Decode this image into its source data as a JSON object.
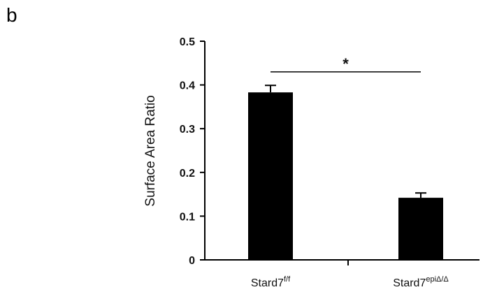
{
  "panel_label": "b",
  "chart_data": {
    "type": "bar",
    "title": "",
    "xlabel": "",
    "ylabel": "Surface Area Ratio",
    "ylim": [
      0,
      0.5
    ],
    "yticks": [
      "0",
      "0.1",
      "0.2",
      "0.3",
      "0.4",
      "0.5"
    ],
    "categories": [
      {
        "base": "Stard7",
        "sup": "f/f"
      },
      {
        "base": "Stard7",
        "sup": "epiΔ/Δ"
      }
    ],
    "values": [
      0.383,
      0.142
    ],
    "errors": [
      0.016,
      0.011
    ],
    "bar_color": "#000000",
    "grid": false,
    "significance": {
      "label": "*",
      "between": [
        0,
        1
      ],
      "y": 0.43
    }
  }
}
